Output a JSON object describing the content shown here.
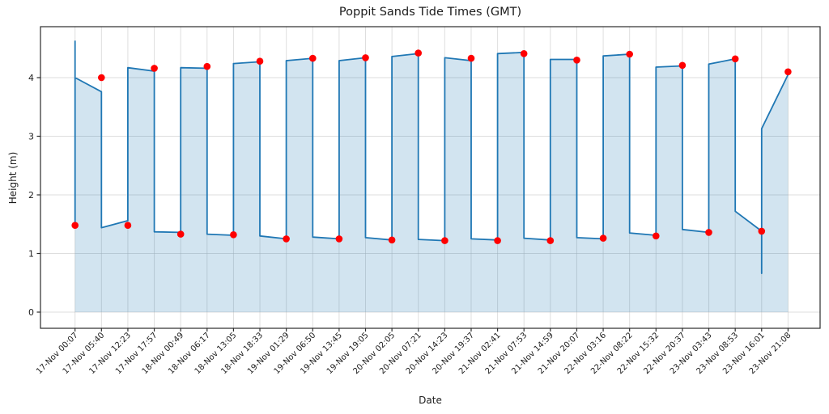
{
  "chart_data": {
    "type": "line",
    "title": "Poppit Sands Tide Times (GMT)",
    "xlabel": "Date",
    "ylabel": "Height (m)",
    "categories": [
      "17-Nov 00:07",
      "17-Nov 05:40",
      "17-Nov 12:23",
      "17-Nov 17:57",
      "18-Nov 00:49",
      "18-Nov 06:17",
      "18-Nov 13:05",
      "18-Nov 18:33",
      "19-Nov 01:29",
      "19-Nov 06:50",
      "19-Nov 13:45",
      "19-Nov 19:05",
      "20-Nov 02:05",
      "20-Nov 07:21",
      "20-Nov 14:23",
      "20-Nov 19:37",
      "21-Nov 02:41",
      "21-Nov 07:53",
      "21-Nov 14:59",
      "21-Nov 20:07",
      "22-Nov 03:16",
      "22-Nov 08:22",
      "22-Nov 15:32",
      "22-Nov 20:37",
      "23-Nov 03:43",
      "23-Nov 08:53",
      "23-Nov 16:01",
      "23-Nov 21:08"
    ],
    "yticks": [
      0,
      1,
      2,
      3,
      4
    ],
    "ylim": [
      -0.28,
      4.87
    ],
    "grid": true,
    "legend": false,
    "colors": {
      "line": "#1f77b4",
      "fill": "#1f77b4",
      "fill_opacity": 0.2,
      "marker": "#ff0000",
      "grid": "#b8b8b8",
      "frame": "#2b2b2b",
      "text": "#1c1c1c"
    },
    "series": [
      {
        "name": "tide height curve",
        "type": "area-line",
        "vertices": [
          [
            0,
            4.63
          ],
          [
            0,
            1.48
          ],
          [
            0,
            4.0
          ],
          [
            1,
            3.76
          ],
          [
            1,
            1.44
          ],
          [
            2,
            1.56
          ],
          [
            2,
            4.17
          ],
          [
            3,
            4.11
          ],
          [
            3,
            1.37
          ],
          [
            4,
            1.36
          ],
          [
            4,
            4.17
          ],
          [
            5,
            4.16
          ],
          [
            5,
            1.33
          ],
          [
            6,
            1.31
          ],
          [
            6,
            4.24
          ],
          [
            7,
            4.27
          ],
          [
            7,
            1.3
          ],
          [
            8,
            1.25
          ],
          [
            8,
            4.29
          ],
          [
            9,
            4.33
          ],
          [
            9,
            1.28
          ],
          [
            10,
            1.25
          ],
          [
            10,
            4.29
          ],
          [
            11,
            4.34
          ],
          [
            11,
            1.27
          ],
          [
            12,
            1.23
          ],
          [
            12,
            4.36
          ],
          [
            13,
            4.41
          ],
          [
            13,
            1.24
          ],
          [
            14,
            1.22
          ],
          [
            14,
            4.34
          ],
          [
            15,
            4.29
          ],
          [
            15,
            1.25
          ],
          [
            16,
            1.23
          ],
          [
            16,
            4.41
          ],
          [
            17,
            4.43
          ],
          [
            17,
            1.26
          ],
          [
            18,
            1.23
          ],
          [
            18,
            4.31
          ],
          [
            19,
            4.31
          ],
          [
            19,
            1.27
          ],
          [
            20,
            1.25
          ],
          [
            20,
            4.37
          ],
          [
            21,
            4.4
          ],
          [
            21,
            1.35
          ],
          [
            22,
            1.31
          ],
          [
            22,
            4.18
          ],
          [
            23,
            4.2
          ],
          [
            23,
            1.41
          ],
          [
            24,
            1.36
          ],
          [
            24,
            4.23
          ],
          [
            25,
            4.32
          ],
          [
            25,
            1.72
          ],
          [
            26,
            1.38
          ],
          [
            26,
            0.66
          ],
          [
            26,
            3.13
          ],
          [
            27,
            4.05
          ]
        ]
      },
      {
        "name": "tide extremes",
        "type": "scatter",
        "points": [
          [
            0,
            1.48
          ],
          [
            1,
            4.0
          ],
          [
            2,
            1.48
          ],
          [
            3,
            4.16
          ],
          [
            4,
            1.33
          ],
          [
            5,
            4.19
          ],
          [
            6,
            1.32
          ],
          [
            7,
            4.28
          ],
          [
            8,
            1.25
          ],
          [
            9,
            4.33
          ],
          [
            10,
            1.25
          ],
          [
            11,
            4.34
          ],
          [
            12,
            1.23
          ],
          [
            13,
            4.42
          ],
          [
            14,
            1.22
          ],
          [
            15,
            4.33
          ],
          [
            16,
            1.22
          ],
          [
            17,
            4.41
          ],
          [
            18,
            1.22
          ],
          [
            19,
            4.3
          ],
          [
            20,
            1.26
          ],
          [
            21,
            4.4
          ],
          [
            22,
            1.3
          ],
          [
            23,
            4.21
          ],
          [
            24,
            1.36
          ],
          [
            25,
            4.32
          ],
          [
            26,
            1.38
          ],
          [
            27,
            4.1
          ]
        ]
      }
    ]
  }
}
